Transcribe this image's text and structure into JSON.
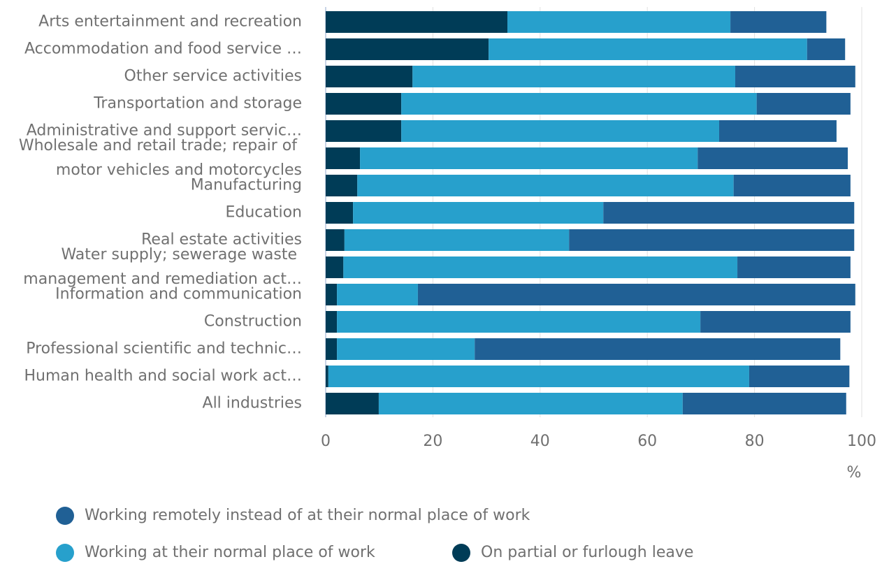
{
  "chart_data": {
    "type": "bar",
    "orientation": "horizontal",
    "stacked": true,
    "x_label": "%",
    "categories": [
      "Arts entertainment and recreation",
      "Accommodation and food service …",
      "Other service activities",
      "Transportation and storage",
      "Administrative and support servic…",
      "Wholesale and retail trade; repair of motor vehicles and motorcycles",
      "Manufacturing",
      "Education",
      "Real estate activities",
      "Water supply; sewerage waste management and remediation act…",
      "Information and communication",
      "Construction",
      "Professional scientific and technic…",
      "Human health and social work act…",
      "All industries"
    ],
    "series": [
      {
        "name": "On partial or furlough leave",
        "color": "#003c57",
        "values": [
          33.9,
          30.4,
          16.2,
          14.1,
          14.1,
          6.4,
          5.9,
          5.1,
          3.5,
          3.3,
          2.1,
          2.1,
          2.1,
          0.5,
          9.9
        ]
      },
      {
        "name": "Working at their normal place of work",
        "color": "#27a0cc",
        "values": [
          41.6,
          59.4,
          60.2,
          66.3,
          59.3,
          63.0,
          70.2,
          46.7,
          41.9,
          73.5,
          15.1,
          67.8,
          25.7,
          78.5,
          56.7
        ]
      },
      {
        "name": "Working remotely instead of at their normal place of work",
        "color": "#206095",
        "values": [
          17.9,
          7.1,
          22.4,
          17.5,
          21.9,
          28.0,
          21.8,
          46.8,
          53.2,
          21.1,
          81.6,
          28.0,
          68.2,
          18.7,
          30.5
        ]
      }
    ],
    "xlim": [
      0,
      100
    ],
    "xticks": [
      0,
      20,
      40,
      60,
      80,
      100
    ],
    "grid": true
  }
}
